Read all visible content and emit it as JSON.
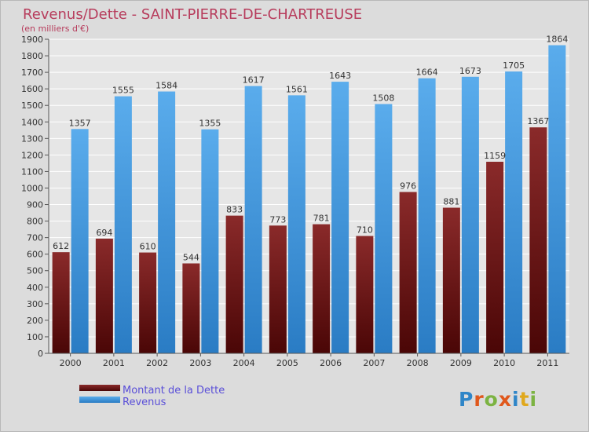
{
  "chart_data": {
    "type": "bar",
    "title": "Revenus/Dette - SAINT-PIERRE-DE-CHARTREUSE",
    "subtitle": "(en milliers d'€)",
    "categories": [
      "2000",
      "2001",
      "2002",
      "2003",
      "2004",
      "2005",
      "2006",
      "2007",
      "2008",
      "2009",
      "2010",
      "2011"
    ],
    "series": [
      {
        "name": "Montant de la Dette",
        "values": [
          612,
          694,
          610,
          544,
          833,
          773,
          781,
          710,
          976,
          881,
          1159,
          1367
        ],
        "color": "#7a1e1e"
      },
      {
        "name": "Revenus",
        "values": [
          1357,
          1555,
          1584,
          1355,
          1617,
          1561,
          1643,
          1508,
          1664,
          1673,
          1705,
          1864
        ],
        "color": "#4f9fe0"
      }
    ],
    "ylim": [
      0,
      1900
    ],
    "yticks": [
      0,
      100,
      200,
      300,
      400,
      500,
      600,
      700,
      800,
      900,
      1000,
      1100,
      1200,
      1300,
      1400,
      1500,
      1600,
      1700,
      1800,
      1900
    ],
    "grid": true,
    "legend_position": "bottom-left"
  },
  "logo": {
    "text": "Proxiti",
    "letters": [
      "P",
      "r",
      "o",
      "x",
      "i",
      "t",
      "i"
    ],
    "colors": [
      "#2f86c8",
      "#e0581c",
      "#7cb342",
      "#e0581c",
      "#2f86c8",
      "#e0a81c",
      "#7cb342"
    ]
  }
}
